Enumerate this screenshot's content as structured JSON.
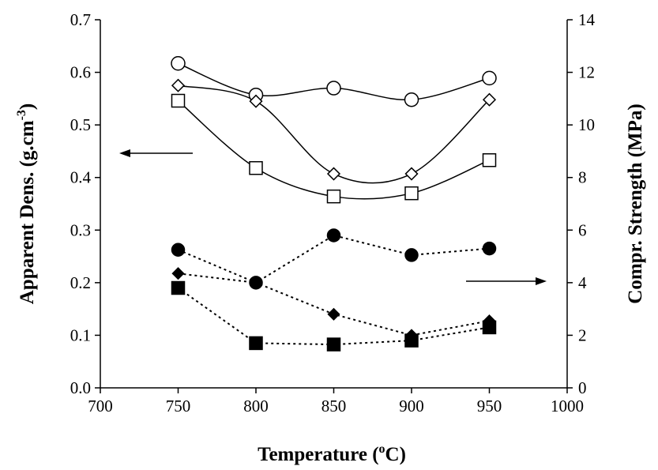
{
  "chart_data": {
    "type": "line",
    "title": "",
    "xlabel": "Temperature (oC)",
    "xlabel_parts": {
      "pre": "Temperature (",
      "sup": "o",
      "post": "C)"
    },
    "ylabel_left_parts": {
      "pre": "Apparent Dens. (g.cm",
      "sup": "-3",
      "post": ")"
    },
    "ylabel_right": "Compr. Strength (MPa)",
    "xlim": [
      700,
      1000
    ],
    "ylim_left": [
      0.0,
      0.7
    ],
    "ylim_right": [
      0,
      14
    ],
    "x_ticks": [
      "700",
      "750",
      "800",
      "850",
      "900",
      "950",
      "1000"
    ],
    "y_left_ticks": [
      "0.0",
      "0.1",
      "0.2",
      "0.3",
      "0.4",
      "0.5",
      "0.6",
      "0.7"
    ],
    "y_right_ticks": [
      "0",
      "2",
      "4",
      "6",
      "8",
      "10",
      "12",
      "14"
    ],
    "grid": false,
    "legend": "none",
    "annotations": [
      {
        "type": "arrow",
        "direction": "left",
        "meaning": "left axis series"
      },
      {
        "type": "arrow",
        "direction": "right",
        "meaning": "right axis series"
      }
    ],
    "series": [
      {
        "axis": "left",
        "marker": "open-circle",
        "line": "solid",
        "x": [
          750,
          800,
          850,
          900,
          950
        ],
        "y": [
          0.617,
          0.557,
          0.57,
          0.548,
          0.589
        ]
      },
      {
        "axis": "left",
        "marker": "open-diamond",
        "line": "solid",
        "x": [
          750,
          800,
          850,
          900,
          950
        ],
        "y": [
          0.575,
          0.545,
          0.407,
          0.407,
          0.548
        ]
      },
      {
        "axis": "left",
        "marker": "open-square",
        "line": "solid",
        "x": [
          750,
          800,
          850,
          900,
          950
        ],
        "y": [
          0.546,
          0.418,
          0.364,
          0.37,
          0.433
        ]
      },
      {
        "axis": "right",
        "marker": "filled-circle",
        "line": "dotted",
        "x": [
          750,
          800,
          850,
          900,
          950
        ],
        "y": [
          5.25,
          4.0,
          5.8,
          5.05,
          5.3
        ]
      },
      {
        "axis": "right",
        "marker": "filled-diamond",
        "line": "dotted",
        "x": [
          750,
          800,
          850,
          900,
          950
        ],
        "y": [
          4.35,
          4.0,
          2.8,
          2.0,
          2.55
        ]
      },
      {
        "axis": "right",
        "marker": "filled-square",
        "line": "dotted",
        "x": [
          750,
          800,
          850,
          900,
          950
        ],
        "y": [
          3.8,
          1.7,
          1.65,
          1.8,
          2.3
        ]
      }
    ]
  }
}
